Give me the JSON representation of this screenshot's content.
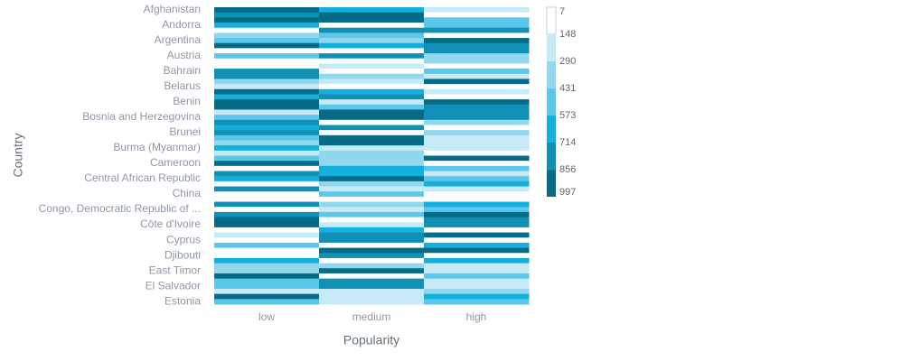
{
  "chart_data": {
    "type": "heatmap",
    "x_label": "Popularity",
    "y_label": "Country",
    "x_categories": [
      "low",
      "medium",
      "high"
    ],
    "y_categories": [
      "Afghanistan",
      null,
      null,
      "Andorra",
      null,
      null,
      "Argentina",
      null,
      null,
      "Austria",
      null,
      null,
      "Bahrain",
      null,
      null,
      "Belarus",
      null,
      null,
      "Benin",
      null,
      null,
      "Bosnia and Herzegovina",
      null,
      null,
      "Brunei",
      null,
      null,
      "Burma (Myanmar)",
      null,
      null,
      "Cameroon",
      null,
      null,
      "Central African Republic",
      null,
      null,
      "China",
      null,
      null,
      "Congo, Democratic Republic of ...",
      null,
      null,
      "Côte d'Ivoire",
      null,
      null,
      "Cyprus",
      null,
      null,
      "Djibouti",
      null,
      null,
      "East Timor",
      null,
      null,
      "El Salvador",
      null,
      null,
      "Estonia"
    ],
    "series": [
      {
        "name": "low",
        "values": [
          930,
          790,
          930,
          640,
          80,
          360,
          500,
          930,
          80,
          500,
          80,
          80,
          790,
          790,
          360,
          220,
          930,
          640,
          930,
          930,
          220,
          500,
          790,
          640,
          790,
          500,
          360,
          640,
          220,
          500,
          930,
          80,
          790,
          640,
          80,
          790,
          80,
          80,
          790,
          80,
          790,
          930,
          930,
          80,
          220,
          80,
          500,
          80,
          80,
          640,
          360,
          360,
          930,
          500,
          500,
          220,
          930,
          500
        ]
      },
      {
        "name": "medium",
        "values": [
          640,
          930,
          930,
          80,
          790,
          500,
          360,
          640,
          80,
          790,
          80,
          220,
          80,
          360,
          220,
          80,
          640,
          790,
          220,
          500,
          930,
          930,
          80,
          790,
          80,
          930,
          930,
          220,
          360,
          360,
          360,
          640,
          640,
          930,
          360,
          220,
          500,
          80,
          360,
          220,
          500,
          80,
          220,
          640,
          790,
          790,
          80,
          930,
          790,
          80,
          360,
          930,
          80,
          790,
          790,
          220,
          220,
          220
        ]
      },
      {
        "name": "high",
        "values": [
          220,
          80,
          500,
          500,
          790,
          80,
          930,
          790,
          790,
          360,
          360,
          80,
          500,
          220,
          930,
          80,
          220,
          80,
          930,
          790,
          790,
          790,
          360,
          80,
          360,
          220,
          220,
          220,
          80,
          930,
          80,
          500,
          220,
          500,
          640,
          220,
          80,
          80,
          640,
          500,
          930,
          790,
          790,
          80,
          930,
          80,
          640,
          930,
          80,
          640,
          220,
          220,
          500,
          220,
          220,
          360,
          640,
          500
        ]
      }
    ],
    "colorscale": {
      "ticks": [
        7,
        148,
        290,
        431,
        573,
        714,
        856,
        997
      ],
      "colors": [
        "#ffffff",
        "#c6eaf7",
        "#91d7ee",
        "#5bc7ea",
        "#13afdf",
        "#1190b6",
        "#056b87"
      ]
    }
  }
}
